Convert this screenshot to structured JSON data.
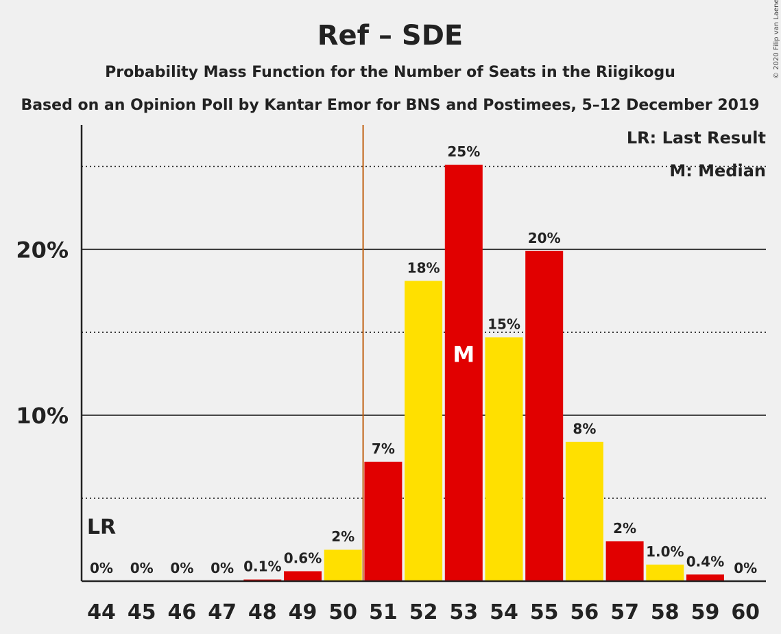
{
  "chart_data": {
    "type": "bar",
    "title": "Ref – SDE",
    "subtitle": "Probability Mass Function for the Number of Seats in the Riigikogu",
    "subtitle2": "Based on an Opinion Poll by Kantar Emor for BNS and Postimees, 5–12 December 2019",
    "categories": [
      "44",
      "45",
      "46",
      "47",
      "48",
      "49",
      "50",
      "51",
      "52",
      "53",
      "54",
      "55",
      "56",
      "57",
      "58",
      "59",
      "60"
    ],
    "values": [
      0,
      0,
      0,
      0,
      0.1,
      0.6,
      1.9,
      7.2,
      18.1,
      25.1,
      14.7,
      19.9,
      8.4,
      2.4,
      1.0,
      0.4,
      0
    ],
    "data_labels": [
      "0%",
      "0%",
      "0%",
      "0%",
      "0.1%",
      "0.6%",
      "2%",
      "7%",
      "18%",
      "25%",
      "15%",
      "20%",
      "8%",
      "2%",
      "1.0%",
      "0.4%",
      "0%"
    ],
    "ylim": [
      0,
      27.5
    ],
    "yticks": [
      {
        "value": 10,
        "label": "10%"
      },
      {
        "value": 20,
        "label": "20%"
      }
    ],
    "minor_gridlines": [
      5,
      15,
      25
    ],
    "bar_colors": [
      "#e10000",
      "#ffe000",
      "#e10000",
      "#ffe000",
      "#e10000",
      "#e10000",
      "#ffe000",
      "#e10000",
      "#ffe000",
      "#e10000",
      "#ffe000",
      "#e10000",
      "#ffe000",
      "#e10000",
      "#ffe000",
      "#e10000",
      "#e10000"
    ],
    "last_result": {
      "seats": "44",
      "label": "LR"
    },
    "last_result_line": {
      "after_seat": "50",
      "color": "#c06010"
    },
    "median": {
      "seats": "53",
      "label": "M"
    },
    "legend": [
      "LR: Last Result",
      "M: Median"
    ],
    "legend_position": "top-right",
    "copyright": "© 2020 Filip van Laenen"
  }
}
